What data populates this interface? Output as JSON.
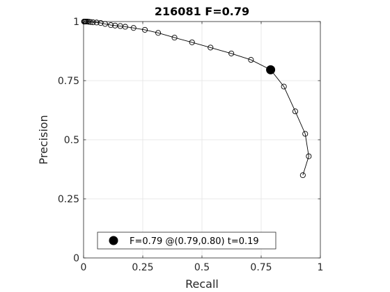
{
  "chart_data": {
    "type": "line",
    "title": "216081 F=0.79",
    "xlabel": "Recall",
    "ylabel": "Precision",
    "xlim": [
      0,
      1
    ],
    "ylim": [
      0,
      1
    ],
    "grid": true,
    "x_ticks": [
      0,
      0.25,
      0.5,
      0.75,
      1
    ],
    "y_ticks": [
      0,
      0.25,
      0.5,
      0.75,
      1
    ],
    "x_tick_labels": [
      "0",
      "0.25",
      "0.5",
      "0.75",
      "1"
    ],
    "y_tick_labels": [
      "0",
      "0.25",
      "0.5",
      "0.75",
      "1"
    ],
    "legend_position": "bottom",
    "series": [
      {
        "marker": "open-circle",
        "color": "#000000",
        "x": [
          0.926,
          0.951,
          0.936,
          0.894,
          0.846,
          0.79,
          0.707,
          0.624,
          0.536,
          0.458,
          0.384,
          0.315,
          0.259,
          0.211,
          0.176,
          0.155,
          0.133,
          0.115,
          0.091,
          0.072,
          0.055,
          0.04,
          0.03,
          0.022,
          0.016,
          0.011,
          0.007,
          0.004,
          0.002
        ],
        "y": [
          0.35,
          0.43,
          0.525,
          0.62,
          0.725,
          0.796,
          0.838,
          0.865,
          0.89,
          0.912,
          0.932,
          0.952,
          0.965,
          0.973,
          0.978,
          0.981,
          0.983,
          0.985,
          0.99,
          0.994,
          0.996,
          0.997,
          0.998,
          0.999,
          1.0,
          1.0,
          1.0,
          1.0,
          1.0
        ]
      }
    ],
    "highlight_point": {
      "x": 0.79,
      "y": 0.796,
      "color": "#000000",
      "label": "F=0.79 @(0.79,0.80) t=0.19"
    }
  }
}
